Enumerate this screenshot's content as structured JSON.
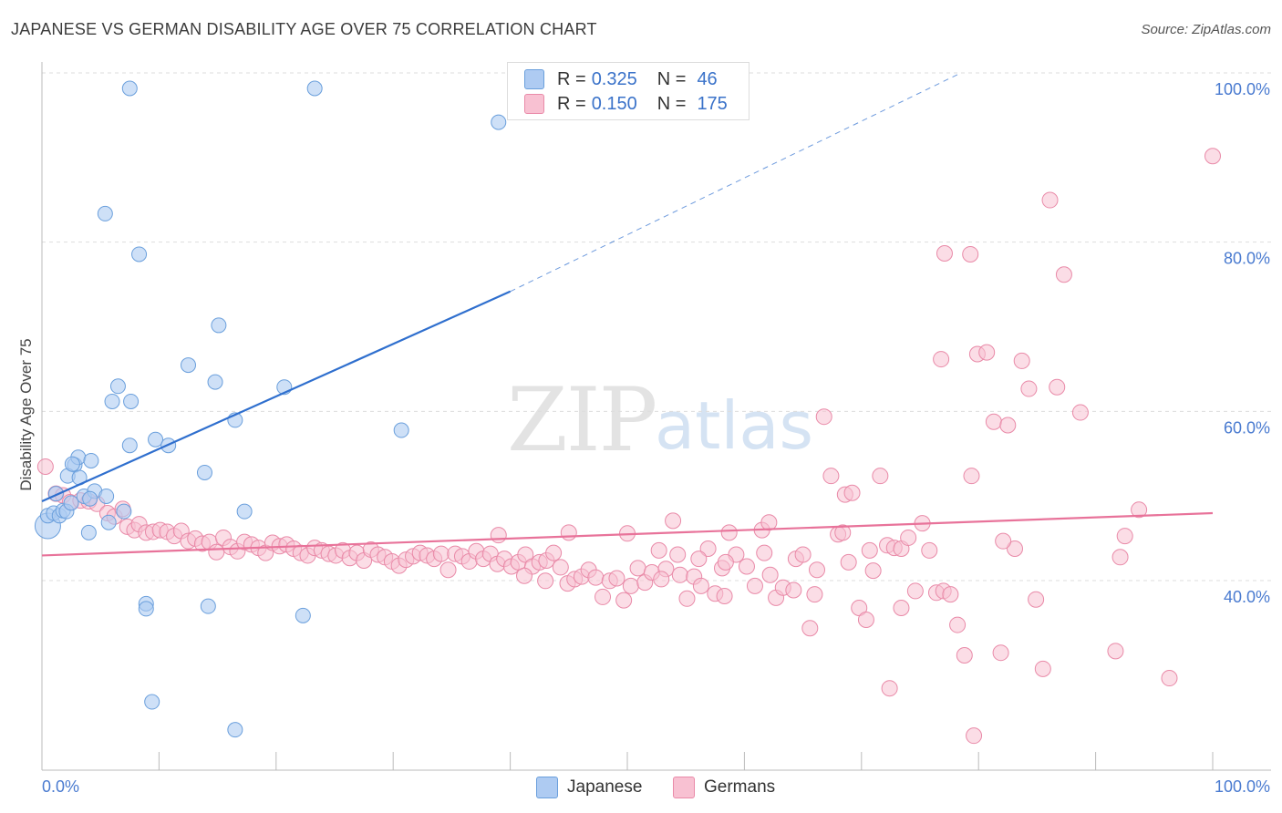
{
  "title": "JAPANESE VS GERMAN DISABILITY AGE OVER 75 CORRELATION CHART",
  "source": "Source: ZipAtlas.com",
  "watermark": {
    "zip": "ZIP",
    "atlas": "atlas"
  },
  "legend": {
    "japanese": {
      "r_label": "R =",
      "r_value": "0.325",
      "n_label": "N =",
      "n_value": "46"
    },
    "germans": {
      "r_label": "R =",
      "r_value": "0.150",
      "n_label": "N =",
      "n_value": "175"
    }
  },
  "bottom_legend": {
    "japanese": "Japanese",
    "germans": "Germans"
  },
  "colors": {
    "japanese_fill": "#aecbf2",
    "japanese_stroke": "#6a9fdc",
    "japanese_line": "#2f6fce",
    "germans_fill": "#f8c1d2",
    "germans_stroke": "#e98aa8",
    "germans_line": "#e8739a",
    "grid": "#dddddd",
    "axis_text": "#4a7bd0"
  },
  "chart_data": {
    "type": "scatter",
    "title": "JAPANESE VS GERMAN DISABILITY AGE OVER 75 CORRELATION CHART",
    "xlabel": "",
    "ylabel": "Disability Age Over 75",
    "xlim": [
      0,
      100
    ],
    "ylim": [
      20,
      102
    ],
    "x_tick_labels": [
      "0.0%",
      "100.0%"
    ],
    "y_ticks": [
      40,
      60,
      80,
      100
    ],
    "y_tick_labels": [
      "40.0%",
      "60.0%",
      "80.0%",
      "100.0%"
    ],
    "grid": true,
    "legend_position": "top-center",
    "series": [
      {
        "name": "Japanese",
        "r": 0.325,
        "n": 46,
        "trend": {
          "x0": 0,
          "y0": 51.2,
          "x1": 40,
          "y1": 76.0,
          "dashed_to_x": 78.5,
          "dashed_to_y": 100
        },
        "points": [
          [
            0.5,
            48.3,
            14
          ],
          [
            0.5,
            49.5,
            8
          ],
          [
            1.0,
            49.8,
            8
          ],
          [
            1.5,
            49.5,
            8
          ],
          [
            1.8,
            50.1,
            8
          ],
          [
            2.1,
            50.0,
            8
          ],
          [
            2.5,
            51.0,
            8
          ],
          [
            2.8,
            55.5,
            8
          ],
          [
            2.2,
            54.2,
            8
          ],
          [
            3.1,
            56.4,
            8
          ],
          [
            3.2,
            54.0,
            8
          ],
          [
            3.6,
            51.8,
            8
          ],
          [
            4.0,
            47.5,
            8
          ],
          [
            4.2,
            56.0,
            8
          ],
          [
            4.5,
            52.4,
            8
          ],
          [
            5.5,
            51.8,
            8
          ],
          [
            5.7,
            48.7,
            8
          ],
          [
            7.0,
            50.0,
            8
          ],
          [
            6.5,
            64.8,
            8
          ],
          [
            6.0,
            63.0,
            8
          ],
          [
            7.5,
            57.8,
            8
          ],
          [
            7.6,
            63.0,
            8
          ],
          [
            9.7,
            58.5,
            8
          ],
          [
            10.8,
            57.8,
            8
          ],
          [
            12.5,
            67.3,
            8
          ],
          [
            13.9,
            54.6,
            8
          ],
          [
            14.8,
            65.3,
            8
          ],
          [
            15.1,
            72.0,
            8
          ],
          [
            16.5,
            60.8,
            8
          ],
          [
            17.3,
            50.0,
            8
          ],
          [
            20.7,
            64.7,
            8
          ],
          [
            30.7,
            59.6,
            8
          ],
          [
            5.4,
            85.2,
            8
          ],
          [
            8.3,
            80.4,
            8
          ],
          [
            7.5,
            100.0,
            8
          ],
          [
            23.3,
            100.0,
            8
          ],
          [
            39.0,
            96.0,
            8
          ],
          [
            8.9,
            39.1,
            8
          ],
          [
            8.9,
            38.5,
            8
          ],
          [
            14.2,
            38.8,
            8
          ],
          [
            22.3,
            37.7,
            8
          ],
          [
            9.4,
            27.5,
            8
          ],
          [
            16.5,
            24.2,
            8
          ],
          [
            4.1,
            51.5,
            8
          ],
          [
            2.6,
            55.6,
            8
          ],
          [
            1.2,
            52.1,
            8
          ]
        ]
      },
      {
        "name": "Germans",
        "r": 0.15,
        "n": 175,
        "trend": {
          "x0": 0,
          "y0": 44.8,
          "x1": 100,
          "y1": 49.8
        },
        "points": [
          [
            0.3,
            55.3
          ],
          [
            1.2,
            52.1
          ],
          [
            1.8,
            51.9
          ],
          [
            2.4,
            51.1
          ],
          [
            3.3,
            51.3
          ],
          [
            4.0,
            51.2
          ],
          [
            4.7,
            50.9
          ],
          [
            5.6,
            49.8
          ],
          [
            6.2,
            49.4
          ],
          [
            6.9,
            50.3
          ],
          [
            7.3,
            48.2
          ],
          [
            7.9,
            47.8
          ],
          [
            8.3,
            48.5
          ],
          [
            8.9,
            47.5
          ],
          [
            9.5,
            47.6
          ],
          [
            10.1,
            47.8
          ],
          [
            10.7,
            47.6
          ],
          [
            11.3,
            47.1
          ],
          [
            11.9,
            47.7
          ],
          [
            12.5,
            46.5
          ],
          [
            13.1,
            46.8
          ],
          [
            13.7,
            46.2
          ],
          [
            14.3,
            46.4
          ],
          [
            14.9,
            45.2
          ],
          [
            15.5,
            46.9
          ],
          [
            16.1,
            45.8
          ],
          [
            16.7,
            45.3
          ],
          [
            17.3,
            46.4
          ],
          [
            17.9,
            46.1
          ],
          [
            18.5,
            45.7
          ],
          [
            19.1,
            45.1
          ],
          [
            19.7,
            46.3
          ],
          [
            20.3,
            45.9
          ],
          [
            20.9,
            46.1
          ],
          [
            21.5,
            45.6
          ],
          [
            22.1,
            45.1
          ],
          [
            22.7,
            44.8
          ],
          [
            23.3,
            45.7
          ],
          [
            23.9,
            45.4
          ],
          [
            24.5,
            45.0
          ],
          [
            25.1,
            44.8
          ],
          [
            25.7,
            45.4
          ],
          [
            26.3,
            44.5
          ],
          [
            26.9,
            45.1
          ],
          [
            27.5,
            44.2
          ],
          [
            28.1,
            45.5
          ],
          [
            28.7,
            44.9
          ],
          [
            29.3,
            44.6
          ],
          [
            29.9,
            44.1
          ],
          [
            30.5,
            43.6
          ],
          [
            31.1,
            44.3
          ],
          [
            31.7,
            44.7
          ],
          [
            32.3,
            45.1
          ],
          [
            32.9,
            44.8
          ],
          [
            33.5,
            44.4
          ],
          [
            34.1,
            45.0
          ],
          [
            34.7,
            43.1
          ],
          [
            35.3,
            45.0
          ],
          [
            35.9,
            44.7
          ],
          [
            36.5,
            44.1
          ],
          [
            37.1,
            45.3
          ],
          [
            37.7,
            44.4
          ],
          [
            38.3,
            45.0
          ],
          [
            38.9,
            43.8
          ],
          [
            39.5,
            44.4
          ],
          [
            40.1,
            43.5
          ],
          [
            40.7,
            44.0
          ],
          [
            41.3,
            44.9
          ],
          [
            41.9,
            43.5
          ],
          [
            42.5,
            44.0
          ],
          [
            43.1,
            44.2
          ],
          [
            43.7,
            45.1
          ],
          [
            44.3,
            43.4
          ],
          [
            44.9,
            41.5
          ],
          [
            45.5,
            42.0
          ],
          [
            46.1,
            42.3
          ],
          [
            46.7,
            43.1
          ],
          [
            47.3,
            42.2
          ],
          [
            47.9,
            39.9
          ],
          [
            48.5,
            41.8
          ],
          [
            49.1,
            42.1
          ],
          [
            49.7,
            39.5
          ],
          [
            50.3,
            41.2
          ],
          [
            50.9,
            43.3
          ],
          [
            51.5,
            41.6
          ],
          [
            52.1,
            42.8
          ],
          [
            52.7,
            45.4
          ],
          [
            53.3,
            43.2
          ],
          [
            53.9,
            48.9
          ],
          [
            54.5,
            42.5
          ],
          [
            55.1,
            39.7
          ],
          [
            55.7,
            42.3
          ],
          [
            56.3,
            41.2
          ],
          [
            56.9,
            45.6
          ],
          [
            57.5,
            40.3
          ],
          [
            58.1,
            43.3
          ],
          [
            58.7,
            47.5
          ],
          [
            59.3,
            44.9
          ],
          [
            60.9,
            41.2
          ],
          [
            61.5,
            47.8
          ],
          [
            62.1,
            48.7
          ],
          [
            62.7,
            39.8
          ],
          [
            63.3,
            41.0
          ],
          [
            64.4,
            44.4
          ],
          [
            65.0,
            44.9
          ],
          [
            65.6,
            36.2
          ],
          [
            66.2,
            43.1
          ],
          [
            66.8,
            61.2
          ],
          [
            67.4,
            54.2
          ],
          [
            68.0,
            47.3
          ],
          [
            68.6,
            52.0
          ],
          [
            69.2,
            52.2
          ],
          [
            69.8,
            38.6
          ],
          [
            70.4,
            37.2
          ],
          [
            71.0,
            43.0
          ],
          [
            71.6,
            54.2
          ],
          [
            72.2,
            46.0
          ],
          [
            72.8,
            45.7
          ],
          [
            73.4,
            45.6
          ],
          [
            74.0,
            46.9
          ],
          [
            74.6,
            40.6
          ],
          [
            75.2,
            48.6
          ],
          [
            75.8,
            45.4
          ],
          [
            76.4,
            40.4
          ],
          [
            77.0,
            40.6
          ],
          [
            77.6,
            40.2
          ],
          [
            78.2,
            36.6
          ],
          [
            78.8,
            33.0
          ],
          [
            79.4,
            54.2
          ],
          [
            79.9,
            68.6
          ],
          [
            80.7,
            68.8
          ],
          [
            81.3,
            60.6
          ],
          [
            81.9,
            33.3
          ],
          [
            82.5,
            60.2
          ],
          [
            83.1,
            45.6
          ],
          [
            83.7,
            67.8
          ],
          [
            84.3,
            64.5
          ],
          [
            84.9,
            39.6
          ],
          [
            85.5,
            31.4
          ],
          [
            86.1,
            86.8
          ],
          [
            86.7,
            64.7
          ],
          [
            87.3,
            78.0
          ],
          [
            68.4,
            47.5
          ],
          [
            68.9,
            44.0
          ],
          [
            66.0,
            40.2
          ],
          [
            64.2,
            40.7
          ],
          [
            62.2,
            42.5
          ],
          [
            60.2,
            43.5
          ],
          [
            58.3,
            40.0
          ],
          [
            56.1,
            44.4
          ],
          [
            54.3,
            44.9
          ],
          [
            52.9,
            42.0
          ],
          [
            50.0,
            47.4
          ],
          [
            45.0,
            47.5
          ],
          [
            43.0,
            41.8
          ],
          [
            41.2,
            42.4
          ],
          [
            39.0,
            47.2
          ],
          [
            92.1,
            44.6
          ],
          [
            92.5,
            47.1
          ],
          [
            93.7,
            50.2
          ],
          [
            91.7,
            33.5
          ],
          [
            96.3,
            30.3
          ],
          [
            100.0,
            92.0
          ],
          [
            77.1,
            80.5
          ],
          [
            79.3,
            80.4
          ],
          [
            72.4,
            29.1
          ],
          [
            79.6,
            23.5
          ],
          [
            73.4,
            38.6
          ],
          [
            61.7,
            45.1
          ],
          [
            58.4,
            44.0
          ],
          [
            70.7,
            45.4
          ],
          [
            82.1,
            46.5
          ],
          [
            76.8,
            68.0
          ],
          [
            88.7,
            61.7
          ]
        ]
      }
    ]
  }
}
